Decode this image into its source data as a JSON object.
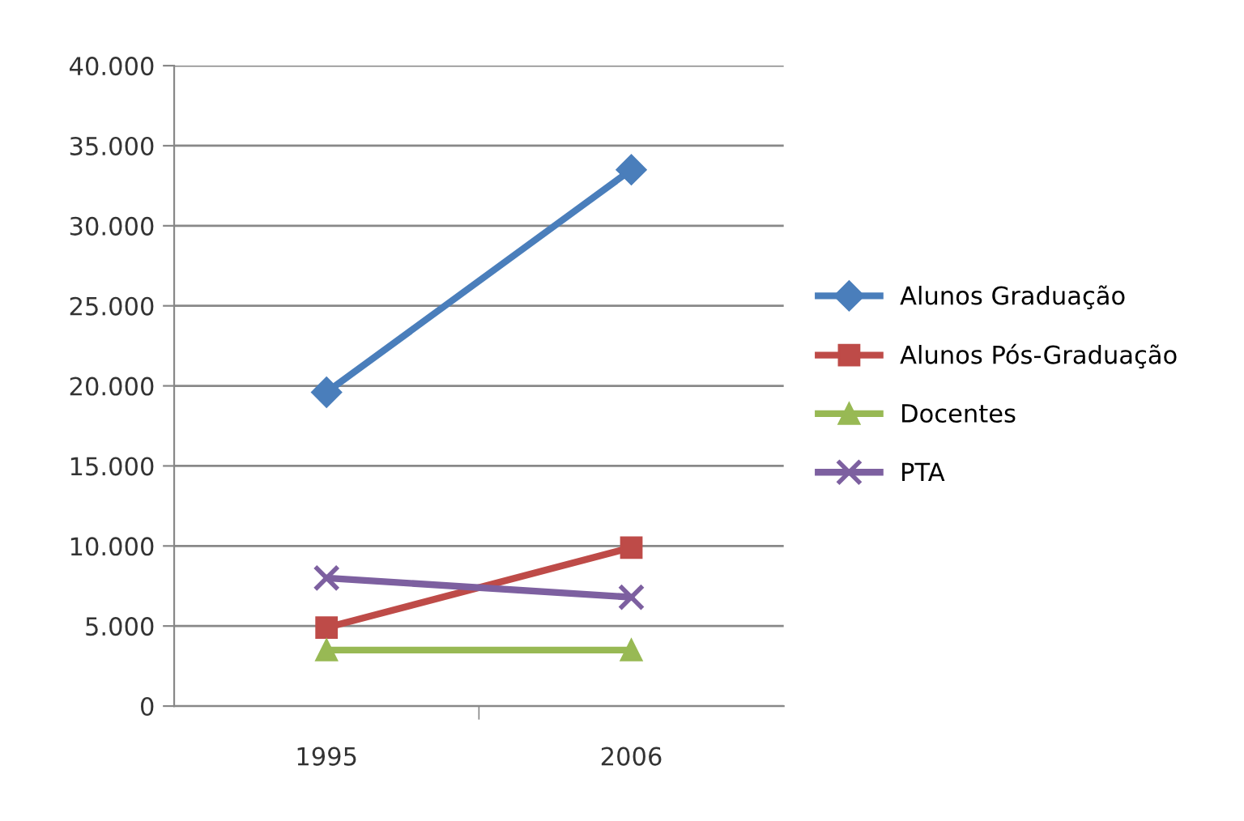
{
  "chart_data": {
    "type": "line",
    "categories": [
      "1995",
      "2006"
    ],
    "series": [
      {
        "name": "Alunos Graduação",
        "color": "#4a7ebb",
        "marker": "diamond",
        "values": [
          19600,
          33500
        ]
      },
      {
        "name": "Alunos Pós-Graduação",
        "color": "#be4b48",
        "marker": "square",
        "values": [
          4900,
          9900
        ]
      },
      {
        "name": "Docentes",
        "color": "#98b954",
        "marker": "triangle",
        "values": [
          3500,
          3500
        ]
      },
      {
        "name": "PTA",
        "color": "#7d60a0",
        "marker": "cross",
        "values": [
          8000,
          6800
        ]
      }
    ],
    "ylim": [
      0,
      40000
    ],
    "yticks": [
      {
        "value": 0,
        "label": "0"
      },
      {
        "value": 5000,
        "label": "5.000"
      },
      {
        "value": 10000,
        "label": "10.000"
      },
      {
        "value": 15000,
        "label": "15.000"
      },
      {
        "value": 20000,
        "label": "20.000"
      },
      {
        "value": 25000,
        "label": "25.000"
      },
      {
        "value": 30000,
        "label": "30.000"
      },
      {
        "value": 35000,
        "label": "35.000"
      },
      {
        "value": 40000,
        "label": "40.000"
      }
    ],
    "grid": "y",
    "legend": "right",
    "line_style": "solid"
  }
}
